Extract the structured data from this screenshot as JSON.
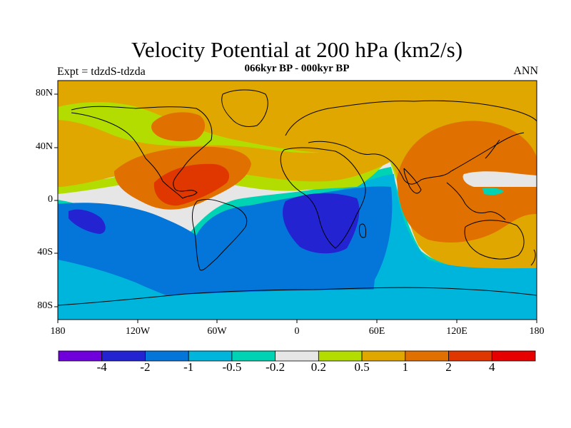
{
  "title": "Velocity Potential at 200 hPa (km2/s)",
  "subtitle": "066kyr BP - 000kyr BP",
  "left_string": "Expt = tdzdS-tdzda",
  "right_string": "ANN",
  "lat_labels": [
    "80N",
    "40N",
    "0",
    "40S",
    "80S"
  ],
  "lon_labels": [
    "180",
    "120W",
    "60W",
    "0",
    "60E",
    "120E",
    "180"
  ],
  "colorbar": {
    "labels": [
      "-4",
      "-2",
      "-1",
      "-0.5",
      "-0.2",
      "0.2",
      "0.5",
      "1",
      "2",
      "4"
    ],
    "colors": [
      "#6f00dc",
      "#2323d2",
      "#0576d9",
      "#00b5dc",
      "#00d2b4",
      "#e6e6e6",
      "#b3dc00",
      "#dfa700",
      "#e07000",
      "#e03700",
      "#e60000"
    ]
  },
  "map_regions": {
    "background": "#dfa700",
    "fill_colors": {
      "light_orange": "#dfa700",
      "orange": "#e07000",
      "red_orange": "#e03700",
      "yellow_green": "#b3dc00",
      "light_gray": "#e6e6e6",
      "teal": "#00d2b4",
      "cyan": "#00b5dc",
      "blue": "#0576d9",
      "dark_blue": "#2323d2"
    }
  }
}
